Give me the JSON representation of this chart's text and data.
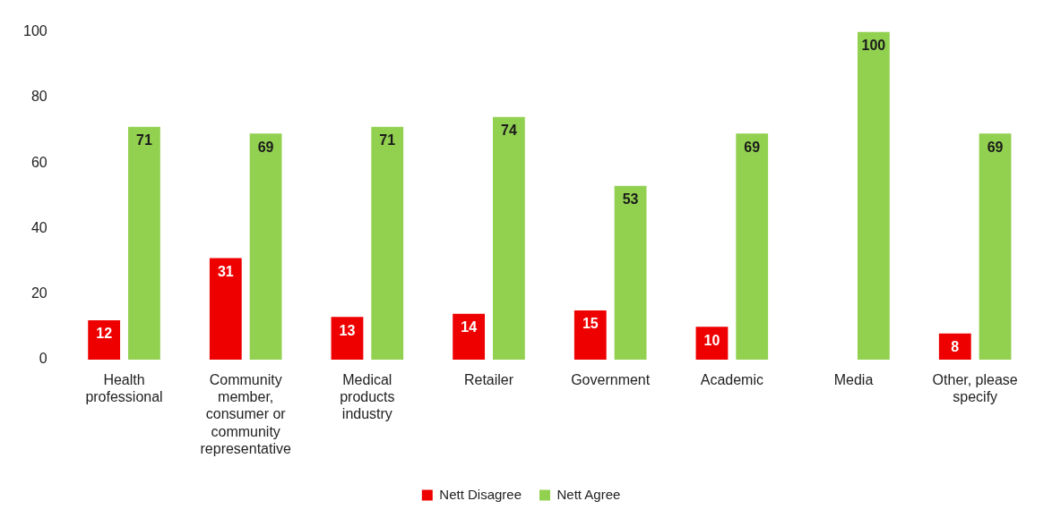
{
  "chart_data": {
    "type": "bar",
    "categories": [
      "Health professional",
      "Community member, consumer or community representative",
      "Medical products industry",
      "Retailer",
      "Government",
      "Academic",
      "Media",
      "Other, please specify"
    ],
    "series": [
      {
        "name": "Nett Disagree",
        "color": "#ee0000",
        "values": [
          12,
          31,
          13,
          14,
          15,
          10,
          null,
          8
        ]
      },
      {
        "name": "Nett Agree",
        "color": "#92d050",
        "values": [
          71,
          69,
          71,
          74,
          53,
          69,
          100,
          69
        ]
      }
    ],
    "ylim": [
      0,
      100
    ],
    "yticks": [
      0,
      20,
      40,
      60,
      80,
      100
    ],
    "grid": false,
    "legend": "bottom",
    "data_labels": true
  }
}
